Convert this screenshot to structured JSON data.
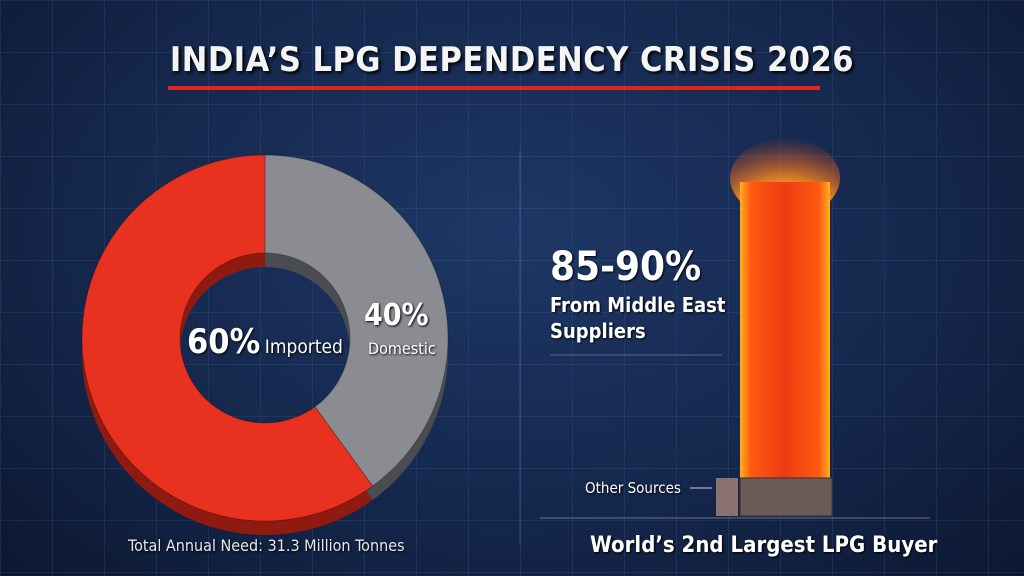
{
  "title": "INDIA’S LPG DEPENDENCY CRISIS 2026",
  "colors": {
    "imported": "#e8321f",
    "domestic": "#8a8c92",
    "accent": "#e3231c",
    "bar": "#ff4a10"
  },
  "chart_data": [
    {
      "type": "pie",
      "style": "donut",
      "slices": [
        {
          "label": "Imported",
          "value": 60,
          "value_label": "60%"
        },
        {
          "label": "Domestic",
          "value": 40,
          "value_label": "40%"
        }
      ],
      "footnote": "Total Annual Need: 31.3 Million Tonnes"
    },
    {
      "type": "bar",
      "categories": [
        "Middle East Suppliers",
        "Other Sources"
      ],
      "values_label": "85-90%",
      "annotation": "From Middle East Suppliers",
      "other_label": "Other Sources",
      "caption": "World’s 2nd Largest LPG Buyer"
    }
  ]
}
